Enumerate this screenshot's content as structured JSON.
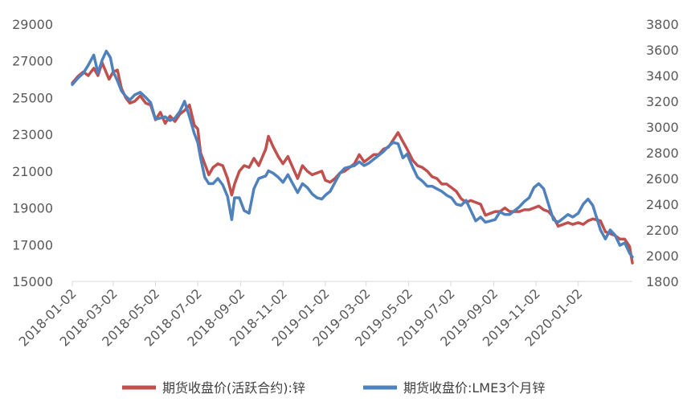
{
  "chart_data": {
    "type": "line",
    "left_axis": {
      "min": 15000,
      "max": 29000,
      "ticks": [
        "29000",
        "27000",
        "25000",
        "23000",
        "21000",
        "19000",
        "17000",
        "15000"
      ]
    },
    "right_axis": {
      "min": 1800,
      "max": 3800,
      "ticks": [
        "3800",
        "3600",
        "3400",
        "3200",
        "3000",
        "2800",
        "2600",
        "2400",
        "2200",
        "2000",
        "1800"
      ]
    },
    "x_ticks": [
      "2018-01-02",
      "2018-03-02",
      "2018-05-02",
      "2018-07-02",
      "2018-09-02",
      "2018-11-02",
      "2019-01-02",
      "2019-03-02",
      "2019-05-02",
      "2019-07-02",
      "2019-09-02",
      "2019-11-02",
      "2020-01-02"
    ],
    "x_range": [
      "2018-01-02",
      "2020-03-20"
    ],
    "series": [
      {
        "name": "期货收盘价(活跃合约):锌",
        "axis": "left",
        "color": "#c0504d",
        "points": [
          [
            "2018-01-02",
            25800
          ],
          [
            "2018-01-10",
            26150
          ],
          [
            "2018-01-18",
            26400
          ],
          [
            "2018-01-25",
            26200
          ],
          [
            "2018-02-02",
            26600
          ],
          [
            "2018-02-08",
            26200
          ],
          [
            "2018-02-14",
            26900
          ],
          [
            "2018-02-24",
            26000
          ],
          [
            "2018-03-02",
            26400
          ],
          [
            "2018-03-08",
            26500
          ],
          [
            "2018-03-14",
            25500
          ],
          [
            "2018-03-20",
            25000
          ],
          [
            "2018-03-26",
            24700
          ],
          [
            "2018-04-02",
            24800
          ],
          [
            "2018-04-10",
            25100
          ],
          [
            "2018-04-18",
            24700
          ],
          [
            "2018-04-25",
            24600
          ],
          [
            "2018-05-02",
            23800
          ],
          [
            "2018-05-09",
            24200
          ],
          [
            "2018-05-16",
            23600
          ],
          [
            "2018-05-23",
            24000
          ],
          [
            "2018-05-30",
            23700
          ],
          [
            "2018-06-06",
            24100
          ],
          [
            "2018-06-13",
            24300
          ],
          [
            "2018-06-20",
            24600
          ],
          [
            "2018-06-27",
            23500
          ],
          [
            "2018-07-02",
            23300
          ],
          [
            "2018-07-06",
            22000
          ],
          [
            "2018-07-12",
            21400
          ],
          [
            "2018-07-18",
            20800
          ],
          [
            "2018-07-24",
            21200
          ],
          [
            "2018-07-31",
            21400
          ],
          [
            "2018-08-07",
            21300
          ],
          [
            "2018-08-14",
            20600
          ],
          [
            "2018-08-20",
            19700
          ],
          [
            "2018-08-24",
            20300
          ],
          [
            "2018-08-31",
            21000
          ],
          [
            "2018-09-07",
            21300
          ],
          [
            "2018-09-14",
            21200
          ],
          [
            "2018-09-21",
            21700
          ],
          [
            "2018-09-28",
            21300
          ],
          [
            "2018-10-08",
            22200
          ],
          [
            "2018-10-12",
            22900
          ],
          [
            "2018-10-19",
            22300
          ],
          [
            "2018-10-26",
            21800
          ],
          [
            "2018-11-02",
            21400
          ],
          [
            "2018-11-09",
            21800
          ],
          [
            "2018-11-16",
            21200
          ],
          [
            "2018-11-23",
            20600
          ],
          [
            "2018-11-30",
            21300
          ],
          [
            "2018-12-07",
            21000
          ],
          [
            "2018-12-14",
            20800
          ],
          [
            "2018-12-21",
            20900
          ],
          [
            "2018-12-28",
            21000
          ],
          [
            "2019-01-02",
            20500
          ],
          [
            "2019-01-09",
            20400
          ],
          [
            "2019-01-16",
            20600
          ],
          [
            "2019-01-23",
            20900
          ],
          [
            "2019-01-30",
            21000
          ],
          [
            "2019-02-13",
            21400
          ],
          [
            "2019-02-20",
            21900
          ],
          [
            "2019-02-27",
            21500
          ],
          [
            "2019-03-06",
            21700
          ],
          [
            "2019-03-13",
            21900
          ],
          [
            "2019-03-20",
            21900
          ],
          [
            "2019-03-27",
            22200
          ],
          [
            "2019-04-03",
            22300
          ],
          [
            "2019-04-10",
            22700
          ],
          [
            "2019-04-17",
            23100
          ],
          [
            "2019-04-24",
            22600
          ],
          [
            "2019-04-30",
            22200
          ],
          [
            "2019-05-08",
            21600
          ],
          [
            "2019-05-15",
            21300
          ],
          [
            "2019-05-22",
            21200
          ],
          [
            "2019-05-29",
            21000
          ],
          [
            "2019-06-05",
            20700
          ],
          [
            "2019-06-12",
            20600
          ],
          [
            "2019-06-19",
            20300
          ],
          [
            "2019-06-26",
            20300
          ],
          [
            "2019-07-03",
            20100
          ],
          [
            "2019-07-10",
            19900
          ],
          [
            "2019-07-17",
            19500
          ],
          [
            "2019-07-24",
            19300
          ],
          [
            "2019-07-31",
            19400
          ],
          [
            "2019-08-07",
            19300
          ],
          [
            "2019-08-14",
            19200
          ],
          [
            "2019-08-21",
            18600
          ],
          [
            "2019-08-28",
            18700
          ],
          [
            "2019-09-04",
            18800
          ],
          [
            "2019-09-11",
            18800
          ],
          [
            "2019-09-18",
            19000
          ],
          [
            "2019-09-25",
            18800
          ],
          [
            "2019-10-09",
            18800
          ],
          [
            "2019-10-16",
            18900
          ],
          [
            "2019-10-23",
            18900
          ],
          [
            "2019-10-30",
            19000
          ],
          [
            "2019-11-06",
            19100
          ],
          [
            "2019-11-13",
            18900
          ],
          [
            "2019-11-20",
            18800
          ],
          [
            "2019-11-27",
            18500
          ],
          [
            "2019-12-04",
            18000
          ],
          [
            "2019-12-11",
            18100
          ],
          [
            "2019-12-18",
            18200
          ],
          [
            "2019-12-25",
            18100
          ],
          [
            "2020-01-02",
            18200
          ],
          [
            "2020-01-09",
            18100
          ],
          [
            "2020-01-16",
            18300
          ],
          [
            "2020-01-23",
            18400
          ],
          [
            "2020-02-03",
            18300
          ],
          [
            "2020-02-10",
            17700
          ],
          [
            "2020-02-17",
            17600
          ],
          [
            "2020-02-24",
            17500
          ],
          [
            "2020-03-02",
            17300
          ],
          [
            "2020-03-09",
            17300
          ],
          [
            "2020-03-16",
            16900
          ],
          [
            "2020-03-20",
            16000
          ]
        ]
      },
      {
        "name": "期货收盘价:LME3个月锌",
        "axis": "right",
        "color": "#4f81bd",
        "points": [
          [
            "2018-01-02",
            3330
          ],
          [
            "2018-01-10",
            3380
          ],
          [
            "2018-01-18",
            3420
          ],
          [
            "2018-01-25",
            3480
          ],
          [
            "2018-02-02",
            3560
          ],
          [
            "2018-02-08",
            3420
          ],
          [
            "2018-02-14",
            3520
          ],
          [
            "2018-02-20",
            3590
          ],
          [
            "2018-02-26",
            3540
          ],
          [
            "2018-03-02",
            3430
          ],
          [
            "2018-03-08",
            3360
          ],
          [
            "2018-03-14",
            3280
          ],
          [
            "2018-03-20",
            3240
          ],
          [
            "2018-03-26",
            3210
          ],
          [
            "2018-04-02",
            3250
          ],
          [
            "2018-04-10",
            3270
          ],
          [
            "2018-04-18",
            3230
          ],
          [
            "2018-04-25",
            3190
          ],
          [
            "2018-05-02",
            3060
          ],
          [
            "2018-05-09",
            3070
          ],
          [
            "2018-05-16",
            3080
          ],
          [
            "2018-05-23",
            3050
          ],
          [
            "2018-05-30",
            3070
          ],
          [
            "2018-06-06",
            3120
          ],
          [
            "2018-06-13",
            3200
          ],
          [
            "2018-06-20",
            3080
          ],
          [
            "2018-06-27",
            2950
          ],
          [
            "2018-07-02",
            2880
          ],
          [
            "2018-07-06",
            2760
          ],
          [
            "2018-07-12",
            2610
          ],
          [
            "2018-07-18",
            2560
          ],
          [
            "2018-07-24",
            2560
          ],
          [
            "2018-07-31",
            2600
          ],
          [
            "2018-08-07",
            2550
          ],
          [
            "2018-08-14",
            2460
          ],
          [
            "2018-08-20",
            2280
          ],
          [
            "2018-08-24",
            2450
          ],
          [
            "2018-08-31",
            2450
          ],
          [
            "2018-09-07",
            2350
          ],
          [
            "2018-09-14",
            2330
          ],
          [
            "2018-09-21",
            2520
          ],
          [
            "2018-09-28",
            2600
          ],
          [
            "2018-10-08",
            2620
          ],
          [
            "2018-10-12",
            2660
          ],
          [
            "2018-10-19",
            2640
          ],
          [
            "2018-10-26",
            2610
          ],
          [
            "2018-11-02",
            2570
          ],
          [
            "2018-11-09",
            2630
          ],
          [
            "2018-11-16",
            2560
          ],
          [
            "2018-11-23",
            2490
          ],
          [
            "2018-11-30",
            2560
          ],
          [
            "2018-12-07",
            2530
          ],
          [
            "2018-12-14",
            2480
          ],
          [
            "2018-12-21",
            2450
          ],
          [
            "2018-12-28",
            2440
          ],
          [
            "2019-01-02",
            2470
          ],
          [
            "2019-01-09",
            2500
          ],
          [
            "2019-01-16",
            2570
          ],
          [
            "2019-01-23",
            2640
          ],
          [
            "2019-01-30",
            2680
          ],
          [
            "2019-02-13",
            2700
          ],
          [
            "2019-02-20",
            2730
          ],
          [
            "2019-02-27",
            2700
          ],
          [
            "2019-03-06",
            2720
          ],
          [
            "2019-03-13",
            2750
          ],
          [
            "2019-03-20",
            2780
          ],
          [
            "2019-03-27",
            2810
          ],
          [
            "2019-04-03",
            2850
          ],
          [
            "2019-04-10",
            2880
          ],
          [
            "2019-04-17",
            2870
          ],
          [
            "2019-04-24",
            2760
          ],
          [
            "2019-04-30",
            2790
          ],
          [
            "2019-05-08",
            2690
          ],
          [
            "2019-05-15",
            2610
          ],
          [
            "2019-05-22",
            2580
          ],
          [
            "2019-05-29",
            2540
          ],
          [
            "2019-06-05",
            2540
          ],
          [
            "2019-06-12",
            2520
          ],
          [
            "2019-06-19",
            2500
          ],
          [
            "2019-06-26",
            2470
          ],
          [
            "2019-07-03",
            2450
          ],
          [
            "2019-07-10",
            2400
          ],
          [
            "2019-07-17",
            2390
          ],
          [
            "2019-07-24",
            2430
          ],
          [
            "2019-07-31",
            2350
          ],
          [
            "2019-08-07",
            2270
          ],
          [
            "2019-08-14",
            2300
          ],
          [
            "2019-08-21",
            2260
          ],
          [
            "2019-08-28",
            2270
          ],
          [
            "2019-09-04",
            2280
          ],
          [
            "2019-09-11",
            2340
          ],
          [
            "2019-09-18",
            2320
          ],
          [
            "2019-09-25",
            2320
          ],
          [
            "2019-10-09",
            2380
          ],
          [
            "2019-10-16",
            2420
          ],
          [
            "2019-10-23",
            2450
          ],
          [
            "2019-10-30",
            2530
          ],
          [
            "2019-11-06",
            2560
          ],
          [
            "2019-11-13",
            2520
          ],
          [
            "2019-11-20",
            2400
          ],
          [
            "2019-11-27",
            2280
          ],
          [
            "2019-12-04",
            2260
          ],
          [
            "2019-12-11",
            2290
          ],
          [
            "2019-12-18",
            2320
          ],
          [
            "2019-12-25",
            2300
          ],
          [
            "2020-01-02",
            2330
          ],
          [
            "2020-01-09",
            2400
          ],
          [
            "2020-01-16",
            2440
          ],
          [
            "2020-01-23",
            2390
          ],
          [
            "2020-02-03",
            2200
          ],
          [
            "2020-02-10",
            2130
          ],
          [
            "2020-02-17",
            2200
          ],
          [
            "2020-02-24",
            2160
          ],
          [
            "2020-03-02",
            2080
          ],
          [
            "2020-03-09",
            2100
          ],
          [
            "2020-03-16",
            2020
          ],
          [
            "2020-03-20",
            1990
          ]
        ]
      }
    ]
  }
}
